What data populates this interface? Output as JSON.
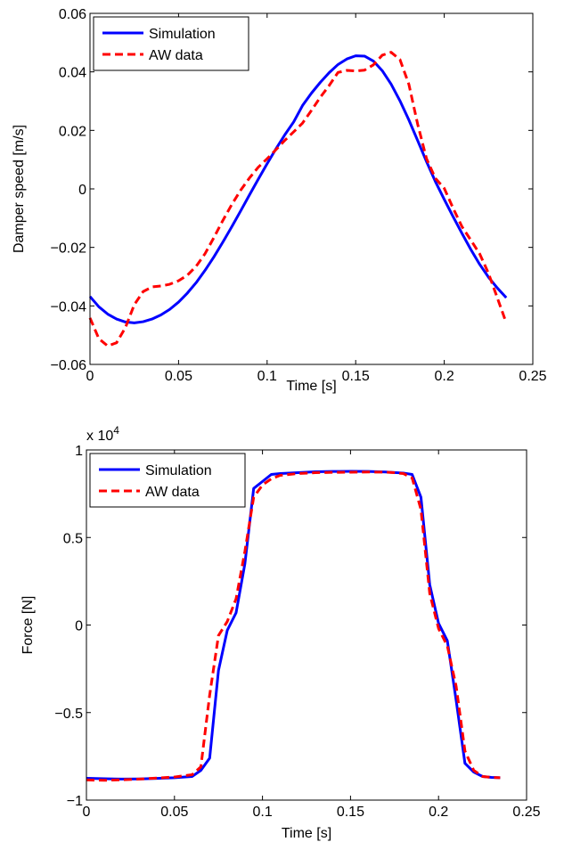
{
  "colors": {
    "simulation": "#0000ff",
    "aw_data": "#ff0000",
    "axes": "#000000",
    "background": "#ffffff"
  },
  "chart_data": [
    {
      "type": "line",
      "title": "",
      "xlabel": "Time [s]",
      "ylabel": "Damper speed [m/s]",
      "xlim": [
        0,
        0.25
      ],
      "ylim": [
        -0.06,
        0.06
      ],
      "xticks": [
        0,
        0.05,
        0.1,
        0.15,
        0.2,
        0.25
      ],
      "xtick_labels": [
        "0",
        "0.05",
        "0.1",
        "0.15",
        "0.2",
        "0.25"
      ],
      "yticks": [
        -0.06,
        -0.04,
        -0.02,
        0,
        0.02,
        0.04,
        0.06
      ],
      "ytick_labels": [
        "−0.06",
        "−0.04",
        "−0.02",
        "0",
        "0.02",
        "0.04",
        "0.06"
      ],
      "exponent_label": "",
      "grid": false,
      "legend_position": "top-left",
      "series": [
        {
          "name": "Simulation",
          "style": "solid",
          "color": "#0000ff",
          "x": [
            0,
            0.005,
            0.01,
            0.015,
            0.02,
            0.025,
            0.03,
            0.035,
            0.04,
            0.045,
            0.05,
            0.055,
            0.06,
            0.065,
            0.07,
            0.075,
            0.08,
            0.085,
            0.09,
            0.095,
            0.1,
            0.105,
            0.11,
            0.115,
            0.12,
            0.125,
            0.13,
            0.135,
            0.14,
            0.145,
            0.15,
            0.155,
            0.16,
            0.165,
            0.17,
            0.175,
            0.18,
            0.185,
            0.19,
            0.195,
            0.2,
            0.205,
            0.21,
            0.215,
            0.22,
            0.225,
            0.23,
            0.235
          ],
          "y": [
            -0.0368,
            -0.0403,
            -0.0428,
            -0.0445,
            -0.0455,
            -0.0458,
            -0.0454,
            -0.0445,
            -0.0431,
            -0.0412,
            -0.0387,
            -0.0356,
            -0.032,
            -0.0278,
            -0.0232,
            -0.0182,
            -0.013,
            -0.0076,
            -0.0021,
            0.0033,
            0.0086,
            0.0137,
            0.0185,
            0.0229,
            0.0285,
            0.0327,
            0.0364,
            0.0397,
            0.0425,
            0.0444,
            0.0455,
            0.0454,
            0.0437,
            0.0404,
            0.0358,
            0.0301,
            0.0236,
            0.0165,
            0.0093,
            0.0025,
            -0.0036,
            -0.0095,
            -0.0152,
            -0.0207,
            -0.0258,
            -0.0302,
            -0.0339,
            -0.0372
          ]
        },
        {
          "name": "AW data",
          "style": "dashed",
          "color": "#ff0000",
          "x": [
            0,
            0.005,
            0.01,
            0.015,
            0.02,
            0.025,
            0.03,
            0.035,
            0.04,
            0.045,
            0.05,
            0.055,
            0.06,
            0.065,
            0.07,
            0.075,
            0.08,
            0.085,
            0.09,
            0.095,
            0.1,
            0.105,
            0.11,
            0.115,
            0.12,
            0.125,
            0.13,
            0.135,
            0.14,
            0.145,
            0.15,
            0.155,
            0.16,
            0.165,
            0.17,
            0.175,
            0.18,
            0.185,
            0.19,
            0.195,
            0.2,
            0.205,
            0.21,
            0.215,
            0.22,
            0.225,
            0.23,
            0.235
          ],
          "y": [
            -0.0441,
            -0.0512,
            -0.0537,
            -0.0526,
            -0.0474,
            -0.0396,
            -0.0351,
            -0.0335,
            -0.0332,
            -0.0326,
            -0.0314,
            -0.0295,
            -0.0264,
            -0.0221,
            -0.0166,
            -0.0108,
            -0.0054,
            -0.0005,
            0.0037,
            0.0074,
            0.0103,
            0.0134,
            0.0166,
            0.0195,
            0.0225,
            0.0268,
            0.0313,
            0.0353,
            0.0398,
            0.0405,
            0.0403,
            0.0406,
            0.0424,
            0.0457,
            0.0467,
            0.0442,
            0.0358,
            0.0221,
            0.0103,
            0.0036,
            0.0002,
            -0.0066,
            -0.0129,
            -0.0175,
            -0.0222,
            -0.0289,
            -0.0373,
            -0.0458
          ]
        }
      ]
    },
    {
      "type": "line",
      "title": "",
      "xlabel": "Time [s]",
      "ylabel": "Force [N]",
      "xlim": [
        0,
        0.25
      ],
      "ylim": [
        -10000,
        10000
      ],
      "xticks": [
        0,
        0.05,
        0.1,
        0.15,
        0.2,
        0.25
      ],
      "xtick_labels": [
        "0",
        "0.05",
        "0.1",
        "0.15",
        "0.2",
        "0.25"
      ],
      "yticks": [
        -10000,
        -5000,
        0,
        5000,
        10000
      ],
      "ytick_labels": [
        "−1",
        "−0.5",
        "0",
        "0.5",
        "1"
      ],
      "exponent_label": "x 10",
      "exponent_power": "4",
      "grid": false,
      "legend_position": "top-left",
      "series": [
        {
          "name": "Simulation",
          "style": "solid",
          "color": "#0000ff",
          "x": [
            0,
            0.01,
            0.02,
            0.03,
            0.04,
            0.05,
            0.06,
            0.065,
            0.07,
            0.075,
            0.08,
            0.085,
            0.09,
            0.095,
            0.1,
            0.105,
            0.11,
            0.12,
            0.13,
            0.14,
            0.15,
            0.16,
            0.17,
            0.175,
            0.18,
            0.185,
            0.19,
            0.195,
            0.2,
            0.205,
            0.21,
            0.215,
            0.22,
            0.225,
            0.23,
            0.235
          ],
          "y": [
            -8750,
            -8780,
            -8800,
            -8790,
            -8760,
            -8720,
            -8650,
            -8300,
            -7600,
            -2600,
            -300,
            700,
            3500,
            7800,
            8200,
            8600,
            8650,
            8700,
            8750,
            8770,
            8780,
            8770,
            8740,
            8710,
            8680,
            8600,
            7300,
            2300,
            100,
            -900,
            -4300,
            -7900,
            -8400,
            -8650,
            -8700,
            -8720
          ]
        },
        {
          "name": "AW data",
          "style": "dashed",
          "color": "#ff0000",
          "x": [
            0,
            0.01,
            0.02,
            0.03,
            0.04,
            0.05,
            0.06,
            0.065,
            0.07,
            0.075,
            0.08,
            0.085,
            0.09,
            0.095,
            0.1,
            0.105,
            0.11,
            0.12,
            0.13,
            0.14,
            0.15,
            0.16,
            0.17,
            0.175,
            0.18,
            0.185,
            0.19,
            0.195,
            0.2,
            0.205,
            0.21,
            0.215,
            0.22,
            0.225,
            0.23,
            0.235
          ],
          "y": [
            -8850,
            -8870,
            -8840,
            -8800,
            -8740,
            -8680,
            -8550,
            -8100,
            -4000,
            -600,
            200,
            1500,
            4200,
            7300,
            8000,
            8350,
            8550,
            8650,
            8700,
            8720,
            8730,
            8740,
            8730,
            8700,
            8650,
            8400,
            6600,
            1800,
            -200,
            -1200,
            -3500,
            -7200,
            -8300,
            -8650,
            -8700,
            -8720
          ]
        }
      ]
    }
  ]
}
